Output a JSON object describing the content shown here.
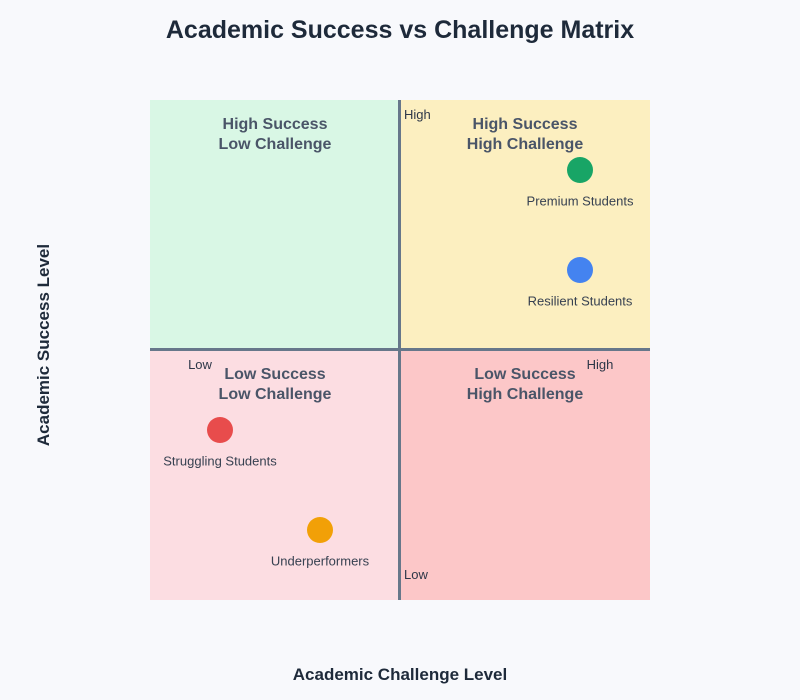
{
  "title": "Academic Success vs Challenge Matrix",
  "x_axis": {
    "label": "Academic Challenge Level",
    "low_tick": "Low",
    "high_tick": "High"
  },
  "y_axis": {
    "label": "Academic Success Level",
    "low_tick": "Low",
    "high_tick": "High"
  },
  "quadrants": {
    "top_left": {
      "line1": "High Success",
      "line2": "Low Challenge",
      "color": "#d9f7e5"
    },
    "top_right": {
      "line1": "High Success",
      "line2": "High Challenge",
      "color": "#fcefc0"
    },
    "bottom_left": {
      "line1": "Low Success",
      "line2": "Low Challenge",
      "color": "#fcdde2"
    },
    "bottom_right": {
      "line1": "Low Success",
      "line2": "High Challenge",
      "color": "#fcc7c8"
    }
  },
  "axis_line_color": "#67778a",
  "background_color": "#f8f9fc",
  "chart_data": {
    "type": "scatter",
    "title": "Academic Success vs Challenge Matrix",
    "xlabel": "Academic Challenge Level",
    "ylabel": "Academic Success Level",
    "xlim": [
      0,
      1
    ],
    "ylim": [
      0,
      1
    ],
    "x_tick_labels": [
      "Low",
      "High"
    ],
    "y_tick_labels": [
      "Low",
      "High"
    ],
    "quadrant_labels": [
      "High Success Low Challenge",
      "High Success High Challenge",
      "Low Success Low Challenge",
      "Low Success High Challenge"
    ],
    "points": [
      {
        "label": "Premium Students",
        "x": 0.86,
        "y": 0.86,
        "color": "#18a566"
      },
      {
        "label": "Resilient Students",
        "x": 0.86,
        "y": 0.66,
        "color": "#4483f0"
      },
      {
        "label": "Struggling Students",
        "x": 0.14,
        "y": 0.34,
        "color": "#e84c4c"
      },
      {
        "label": "Underperformers",
        "x": 0.34,
        "y": 0.14,
        "color": "#f2a007"
      }
    ]
  }
}
